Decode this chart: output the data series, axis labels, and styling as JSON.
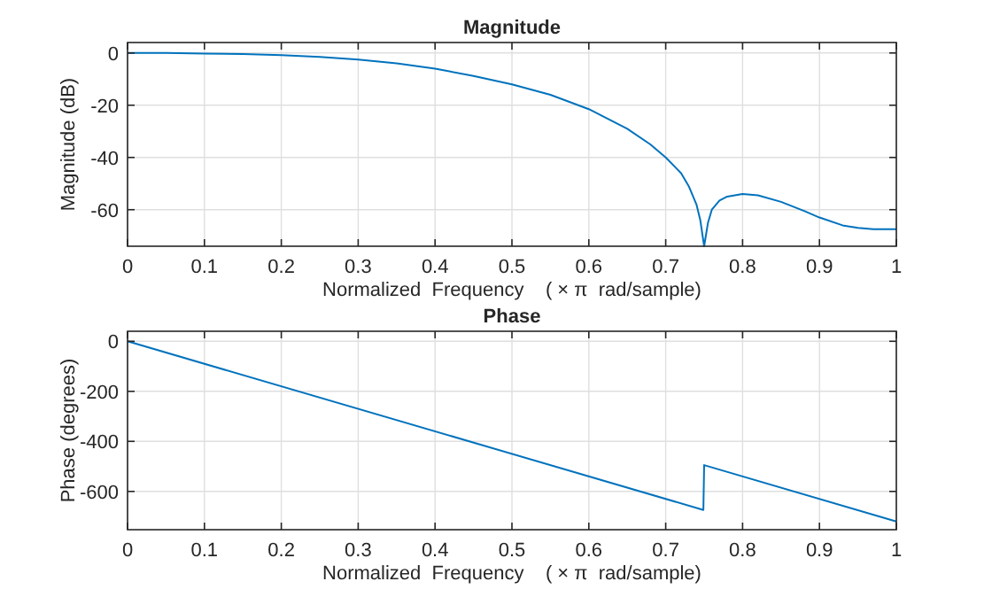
{
  "chart_data": [
    {
      "type": "line",
      "title": "Magnitude",
      "xlabel": "Normalized  Frequency    ( × π  rad/sample)",
      "ylabel": "Magnitude (dB)",
      "grid": true,
      "xlim": [
        0,
        1
      ],
      "xticks": [
        0,
        0.1,
        0.2,
        0.3,
        0.4,
        0.5,
        0.6,
        0.7,
        0.8,
        0.9,
        1
      ],
      "ylim": [
        -74,
        4
      ],
      "yticks": [
        -60,
        -40,
        -20,
        0
      ],
      "series": [
        {
          "color": "#0072bd",
          "x": [
            0,
            0.05,
            0.1,
            0.15,
            0.2,
            0.25,
            0.3,
            0.35,
            0.4,
            0.45,
            0.5,
            0.55,
            0.6,
            0.65,
            0.68,
            0.7,
            0.72,
            0.73,
            0.74,
            0.745,
            0.75,
            0.755,
            0.76,
            0.77,
            0.78,
            0.8,
            0.82,
            0.85,
            0.88,
            0.9,
            0.93,
            0.95,
            0.97,
            1
          ],
          "values": [
            0,
            0,
            -0.2,
            -0.4,
            -0.8,
            -1.5,
            -2.5,
            -4,
            -6,
            -8.8,
            -12,
            -16,
            -21.5,
            -29,
            -35,
            -40,
            -46,
            -51,
            -58,
            -64,
            -74,
            -65,
            -60,
            -56.5,
            -55,
            -54,
            -54.5,
            -57,
            -60.5,
            -63,
            -66,
            -67,
            -67.5,
            -67.5
          ]
        }
      ]
    },
    {
      "type": "line",
      "title": "Phase",
      "xlabel": "Normalized  Frequency    ( × π  rad/sample)",
      "ylabel": "Phase (degrees)",
      "grid": true,
      "xlim": [
        0,
        1
      ],
      "xticks": [
        0,
        0.1,
        0.2,
        0.3,
        0.4,
        0.5,
        0.6,
        0.7,
        0.8,
        0.9,
        1
      ],
      "ylim": [
        -753,
        40
      ],
      "yticks": [
        -600,
        -400,
        -200,
        0
      ],
      "series": [
        {
          "color": "#0072bd",
          "x": [
            0,
            0.749,
            0.75,
            1
          ],
          "values": [
            0,
            -674,
            -495,
            -720
          ]
        }
      ]
    }
  ]
}
